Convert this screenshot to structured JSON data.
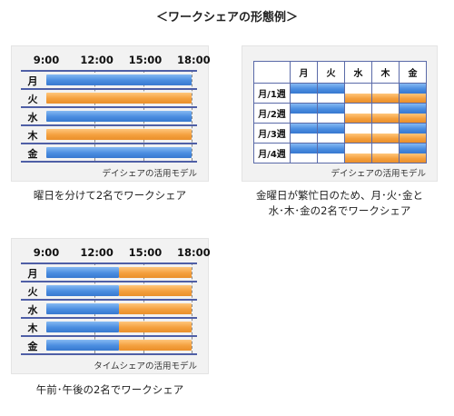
{
  "title": "＜ワークシェアの形態例＞",
  "colors": {
    "blue": "#4a8de0",
    "orange": "#f4a03e",
    "line": "#4f5fa6",
    "panel": "#f2f2f2"
  },
  "time_headers": [
    "9:00",
    "12:00",
    "15:00",
    "18:00"
  ],
  "days": [
    "月",
    "火",
    "水",
    "木",
    "金"
  ],
  "model1": {
    "label": "デイシェアの活用モデル",
    "caption": "曜日を分けて2名でワークシェア",
    "rows": [
      {
        "day": "月",
        "from": 9,
        "to": 18,
        "color": "blue"
      },
      {
        "day": "火",
        "from": 9,
        "to": 18,
        "color": "orange"
      },
      {
        "day": "水",
        "from": 9,
        "to": 18,
        "color": "blue"
      },
      {
        "day": "木",
        "from": 9,
        "to": 18,
        "color": "orange"
      },
      {
        "day": "金",
        "from": 9,
        "to": 18,
        "color": "blue"
      }
    ]
  },
  "model2": {
    "label": "デイシェアの活用モデル",
    "caption_line1": "金曜日が繁忙日のため、月･火･金と",
    "caption_line2": "水･木･金の2名でワークシェア",
    "columns": [
      "月",
      "火",
      "水",
      "木",
      "金"
    ],
    "rows": [
      {
        "label": "月/1週",
        "top": [
          "blue",
          "blue",
          "none",
          "none",
          "blue"
        ],
        "bottom": [
          "none",
          "none",
          "orange",
          "orange",
          "orange"
        ]
      },
      {
        "label": "月/2週",
        "top": [
          "blue",
          "blue",
          "none",
          "none",
          "blue"
        ],
        "bottom": [
          "none",
          "none",
          "orange",
          "orange",
          "orange"
        ]
      },
      {
        "label": "月/3週",
        "top": [
          "blue",
          "blue",
          "none",
          "none",
          "blue"
        ],
        "bottom": [
          "none",
          "none",
          "orange",
          "orange",
          "orange"
        ]
      },
      {
        "label": "月/4週",
        "top": [
          "blue",
          "blue",
          "none",
          "none",
          "blue"
        ],
        "bottom": [
          "none",
          "none",
          "orange",
          "orange",
          "orange"
        ]
      }
    ]
  },
  "model3": {
    "label": "タイムシェアの活用モデル",
    "caption": "午前･午後の2名でワークシェア",
    "rows": [
      {
        "day": "月",
        "am": [
          9,
          13.5
        ],
        "pm": [
          13.5,
          18
        ]
      },
      {
        "day": "火",
        "am": [
          9,
          13.5
        ],
        "pm": [
          13.5,
          18
        ]
      },
      {
        "day": "水",
        "am": [
          9,
          13.5
        ],
        "pm": [
          13.5,
          18
        ]
      },
      {
        "day": "木",
        "am": [
          9,
          13.5
        ],
        "pm": [
          13.5,
          18
        ]
      },
      {
        "day": "金",
        "am": [
          9,
          13.5
        ],
        "pm": [
          13.5,
          18
        ]
      }
    ]
  }
}
